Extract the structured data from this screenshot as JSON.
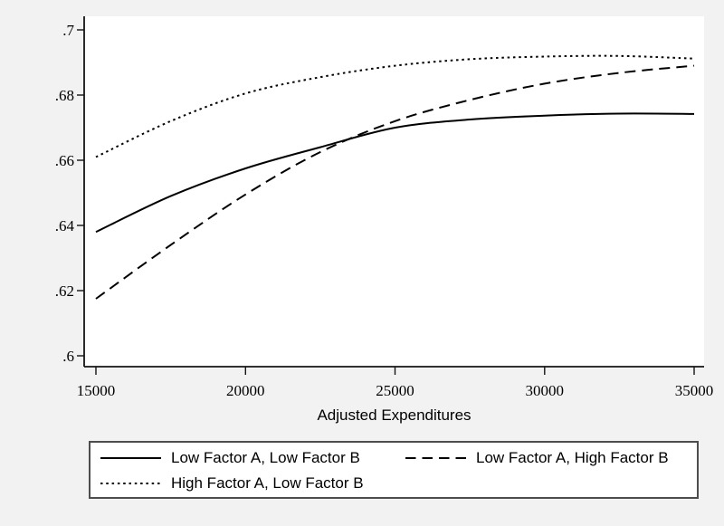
{
  "chart_data": {
    "type": "line",
    "title": "",
    "xlabel": "Adjusted Expenditures",
    "ylabel": "",
    "x": [
      15000,
      17500,
      20000,
      22500,
      25000,
      27500,
      30000,
      32500,
      35000
    ],
    "series": [
      {
        "name": "Low Factor A, Low Factor B",
        "style": "solid",
        "values": [
          0.638,
          0.649,
          0.6575,
          0.664,
          0.67,
          0.6725,
          0.6737,
          0.6743,
          0.6742
        ]
      },
      {
        "name": "Low Factor A, High Factor B",
        "style": "dashed",
        "values": [
          0.6175,
          0.634,
          0.6495,
          0.6625,
          0.672,
          0.6785,
          0.6835,
          0.6868,
          0.689
        ]
      },
      {
        "name": "High Factor A, Low Factor B",
        "style": "dotted",
        "values": [
          0.661,
          0.672,
          0.6805,
          0.6855,
          0.689,
          0.691,
          0.6918,
          0.692,
          0.6912
        ]
      }
    ],
    "x_ticks": {
      "values": [
        15000,
        20000,
        25000,
        30000,
        35000
      ],
      "labels": [
        "15000",
        "20000",
        "25000",
        "30000",
        "35000"
      ]
    },
    "y_ticks": {
      "values": [
        0.6,
        0.62,
        0.64,
        0.66,
        0.68,
        0.7
      ],
      "labels": [
        ".6",
        ".62",
        ".64",
        ".66",
        ".68",
        ".7"
      ]
    },
    "xlim": [
      14600,
      35340
    ],
    "ylim": [
      0.5967,
      0.7042
    ],
    "grid": false,
    "legend_position": "bottom",
    "line_color": "#000000",
    "text_color": "#000000",
    "background": "#f2f2f2",
    "plot_background": "#ffffff"
  }
}
